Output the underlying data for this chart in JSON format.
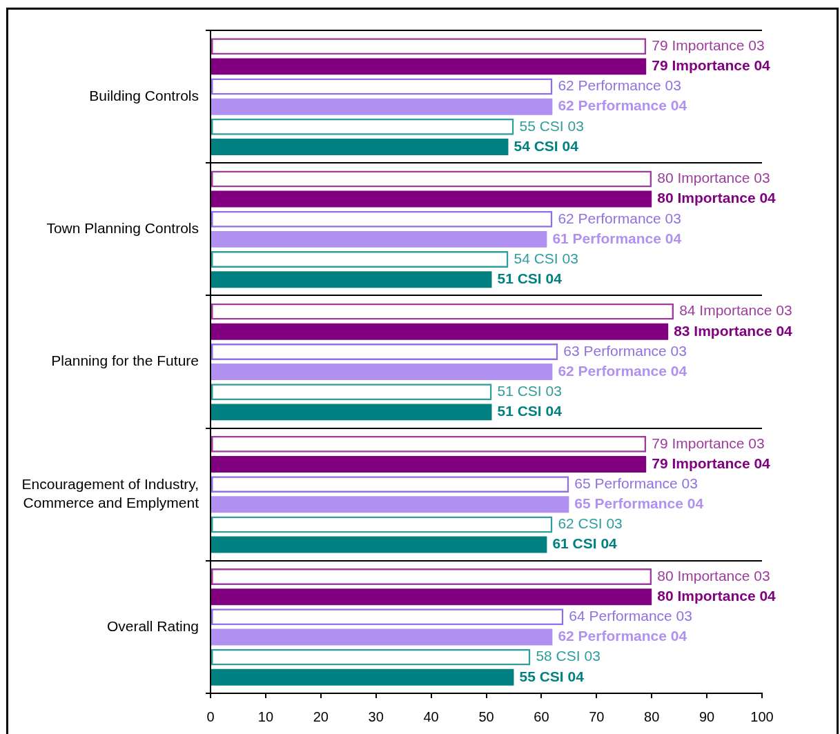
{
  "chart_data": {
    "type": "bar",
    "orientation": "horizontal",
    "categories": [
      "Building Controls",
      "Town Planning Controls",
      "Planning for the Future",
      "Encouragement of Industry, Commerce and Emplyment",
      "Overall Rating"
    ],
    "series": [
      {
        "name": "Importance 03",
        "color": "#9c3c9c",
        "values": [
          79,
          80,
          84,
          79,
          80
        ]
      },
      {
        "name": "Importance 04",
        "color": "#800080",
        "values": [
          79,
          80,
          83,
          79,
          80
        ]
      },
      {
        "name": "Performance 03",
        "color": "#9070e0",
        "values": [
          62,
          62,
          63,
          65,
          64
        ]
      },
      {
        "name": "Performance 04",
        "color": "#b090f0",
        "values": [
          62,
          61,
          62,
          65,
          62
        ]
      },
      {
        "name": "CSI 03",
        "color": "#309c9c",
        "values": [
          55,
          54,
          51,
          62,
          58
        ]
      },
      {
        "name": "CSI 04",
        "color": "#008080",
        "values": [
          54,
          51,
          51,
          61,
          55
        ]
      }
    ],
    "xlim": [
      0,
      100
    ],
    "xticks": [
      0,
      10,
      20,
      30,
      40,
      50,
      60,
      70,
      80,
      90,
      100
    ],
    "grid": "y",
    "legend": false,
    "data_labels": true
  }
}
